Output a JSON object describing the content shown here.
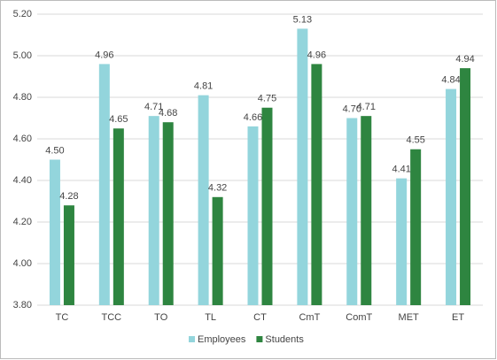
{
  "chart_data": {
    "type": "bar",
    "categories": [
      "TC",
      "TCC",
      "TO",
      "TL",
      "CT",
      "CmT",
      "ComT",
      "MET",
      "ET"
    ],
    "series": [
      {
        "name": "Employees",
        "color": "#93d5dc",
        "values": [
          4.5,
          4.96,
          4.71,
          4.81,
          4.66,
          5.13,
          4.7,
          4.41,
          4.84
        ],
        "value_labels": [
          "4.50",
          "4.96",
          "4.71",
          "4.81",
          "4.66",
          "5.13",
          "4.70",
          "4.41",
          "4.84"
        ]
      },
      {
        "name": "Students",
        "color": "#2e8540",
        "values": [
          4.28,
          4.65,
          4.68,
          4.32,
          4.75,
          4.96,
          4.71,
          4.55,
          4.94
        ],
        "value_labels": [
          "4.28",
          "4.65",
          "4.68",
          "4.32",
          "4.75",
          "4.96",
          "4.71",
          "4.55",
          "4.94"
        ]
      }
    ],
    "ylim": [
      3.8,
      5.2
    ],
    "yticks": [
      {
        "value": 3.8,
        "label": "3.80"
      },
      {
        "value": 4,
        "label": "4.00"
      },
      {
        "value": 4.2,
        "label": "4.20"
      },
      {
        "value": 4.4,
        "label": "4.40"
      },
      {
        "value": 4.6,
        "label": "4.60"
      },
      {
        "value": 4.8,
        "label": "4.80"
      },
      {
        "value": 5,
        "label": "5.00"
      },
      {
        "value": 5.2,
        "label": "5.20"
      }
    ],
    "grid": true,
    "legend": "bottom"
  }
}
